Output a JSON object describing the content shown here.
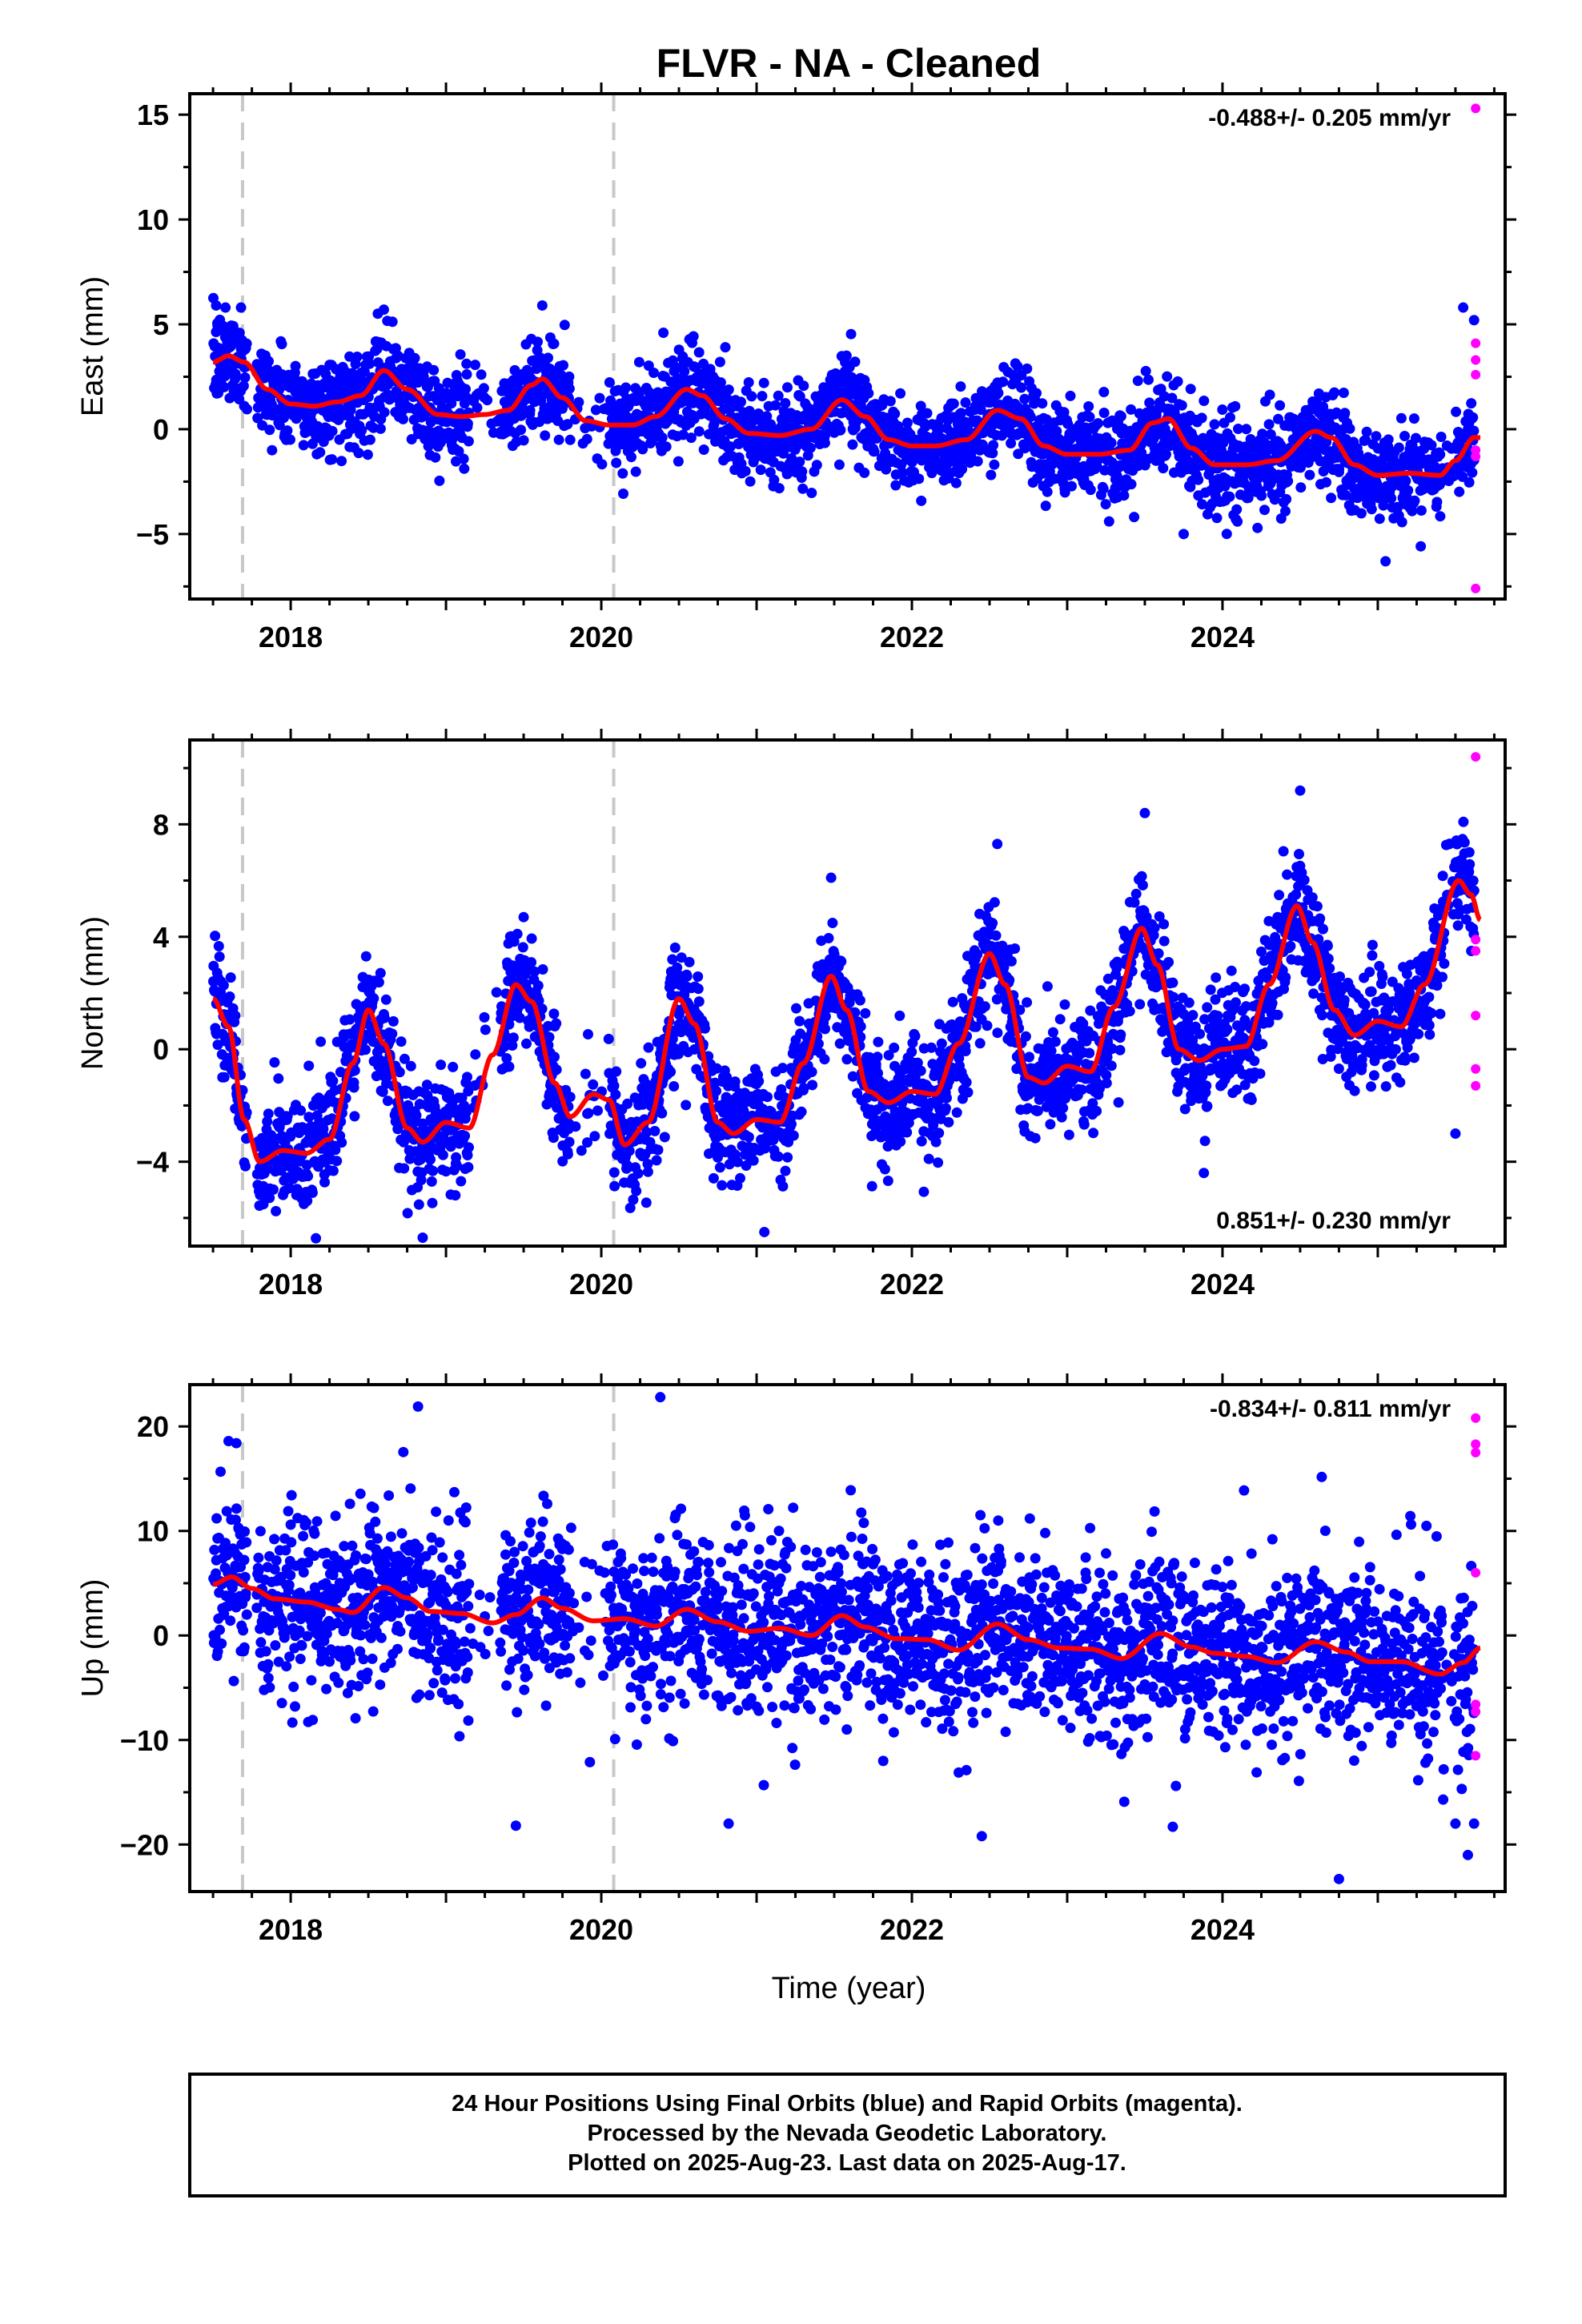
{
  "title": "FLVR  - NA - Cleaned",
  "xlabel": "Time (year)",
  "footer": {
    "line1": "24 Hour Positions Using Final Orbits (blue) and Rapid Orbits (magenta).",
    "line2": "Processed by the Nevada Geodetic Laboratory.",
    "line3": "Plotted on 2025-Aug-23. Last data on 2025-Aug-17."
  },
  "colors": {
    "final_orbits": "#0000ff",
    "rapid_orbits": "#ff00ff",
    "model_fit": "#ff0000",
    "event_lines": "#c8c8c8",
    "frame": "#000000"
  },
  "chart_data": [
    {
      "type": "scatter",
      "component": "East",
      "ylabel": "East (mm)",
      "rate_label": "-0.488+/- 0.205 mm/yr",
      "xlim": [
        2017.35,
        2025.82
      ],
      "ylim": [
        -8.1,
        16.0
      ],
      "xticks": [
        2018,
        2020,
        2022,
        2024
      ],
      "yticks": [
        -5,
        0,
        5,
        10,
        15
      ],
      "event_lines_x": [
        2017.69,
        2020.08
      ],
      "grid": false,
      "series": [
        {
          "name": "Final Orbits",
          "color": "#0000ff",
          "description": "daily positions, ~1 point per day",
          "fit_knots": [
            [
              2017.5,
              3.2
            ],
            [
              2017.6,
              3.5
            ],
            [
              2017.7,
              3.2
            ],
            [
              2017.85,
              1.9
            ],
            [
              2018.0,
              1.2
            ],
            [
              2018.15,
              1.1
            ],
            [
              2018.3,
              1.3
            ],
            [
              2018.45,
              1.6
            ],
            [
              2018.6,
              2.8
            ],
            [
              2018.75,
              1.9
            ],
            [
              2018.95,
              0.7
            ],
            [
              2019.1,
              0.6
            ],
            [
              2019.25,
              0.7
            ],
            [
              2019.4,
              0.9
            ],
            [
              2019.55,
              2.1
            ],
            [
              2019.62,
              2.4
            ],
            [
              2019.75,
              1.5
            ],
            [
              2019.9,
              0.4
            ],
            [
              2020.05,
              0.2
            ],
            [
              2020.2,
              0.2
            ],
            [
              2020.35,
              0.6
            ],
            [
              2020.55,
              1.9
            ],
            [
              2020.65,
              1.6
            ],
            [
              2020.8,
              0.5
            ],
            [
              2020.95,
              -0.2
            ],
            [
              2021.15,
              -0.3
            ],
            [
              2021.35,
              0.0
            ],
            [
              2021.55,
              1.4
            ],
            [
              2021.7,
              0.6
            ],
            [
              2021.85,
              -0.5
            ],
            [
              2022.0,
              -0.8
            ],
            [
              2022.15,
              -0.8
            ],
            [
              2022.35,
              -0.5
            ],
            [
              2022.55,
              0.9
            ],
            [
              2022.7,
              0.5
            ],
            [
              2022.85,
              -0.8
            ],
            [
              2023.0,
              -1.2
            ],
            [
              2023.2,
              -1.2
            ],
            [
              2023.4,
              -1.0
            ],
            [
              2023.55,
              0.3
            ],
            [
              2023.65,
              0.5
            ],
            [
              2023.8,
              -0.9
            ],
            [
              2023.95,
              -1.7
            ],
            [
              2024.15,
              -1.7
            ],
            [
              2024.35,
              -1.5
            ],
            [
              2024.6,
              -0.1
            ],
            [
              2024.7,
              -0.4
            ],
            [
              2024.85,
              -1.7
            ],
            [
              2025.0,
              -2.2
            ],
            [
              2025.2,
              -2.1
            ],
            [
              2025.4,
              -2.2
            ],
            [
              2025.5,
              -1.5
            ],
            [
              2025.62,
              -0.4
            ],
            [
              2025.66,
              -0.4
            ]
          ],
          "amplitude_annual": 0.9,
          "noise_sigma": 1.1,
          "outliers": [
            [
              2017.52,
              5.9
            ],
            [
              2017.58,
              5.8
            ],
            [
              2017.68,
              5.8
            ],
            [
              2018.6,
              5.7
            ],
            [
              2019.62,
              5.9
            ],
            [
              2020.4,
              4.6
            ],
            [
              2023.75,
              -5.0
            ],
            [
              2025.05,
              -6.3
            ],
            [
              2025.55,
              5.8
            ],
            [
              2025.62,
              5.2
            ]
          ]
        },
        {
          "name": "Rapid Orbits",
          "color": "#ff00ff",
          "points": [
            [
              2025.63,
              15.3
            ],
            [
              2025.63,
              4.1
            ],
            [
              2025.63,
              3.3
            ],
            [
              2025.63,
              2.6
            ],
            [
              2025.63,
              -1.0
            ],
            [
              2025.63,
              -1.3
            ],
            [
              2025.63,
              -7.6
            ]
          ]
        }
      ]
    },
    {
      "type": "scatter",
      "component": "North",
      "ylabel": "North (mm)",
      "rate_label": "0.851+/- 0.230 mm/yr",
      "xlim": [
        2017.35,
        2025.82
      ],
      "ylim": [
        -7.0,
        11.0
      ],
      "xticks": [
        2018,
        2020,
        2022,
        2024
      ],
      "yticks": [
        -4,
        0,
        4,
        8
      ],
      "event_lines_x": [
        2017.69,
        2020.08
      ],
      "grid": false,
      "series": [
        {
          "name": "Final Orbits",
          "color": "#0000ff",
          "fit_knots": [
            [
              2017.5,
              1.8
            ],
            [
              2017.6,
              0.8
            ],
            [
              2017.7,
              -2.5
            ],
            [
              2017.8,
              -4.0
            ],
            [
              2017.95,
              -3.6
            ],
            [
              2018.1,
              -3.7
            ],
            [
              2018.25,
              -3.2
            ],
            [
              2018.4,
              -0.5
            ],
            [
              2018.5,
              1.4
            ],
            [
              2018.6,
              0.2
            ],
            [
              2018.75,
              -2.8
            ],
            [
              2018.85,
              -3.3
            ],
            [
              2019.0,
              -2.6
            ],
            [
              2019.15,
              -2.8
            ],
            [
              2019.3,
              -0.2
            ],
            [
              2019.45,
              2.3
            ],
            [
              2019.55,
              1.7
            ],
            [
              2019.7,
              -1.2
            ],
            [
              2019.8,
              -2.4
            ],
            [
              2019.95,
              -1.6
            ],
            [
              2020.05,
              -1.8
            ],
            [
              2020.15,
              -3.4
            ],
            [
              2020.3,
              -2.6
            ],
            [
              2020.5,
              1.8
            ],
            [
              2020.6,
              0.9
            ],
            [
              2020.75,
              -2.6
            ],
            [
              2020.85,
              -3.0
            ],
            [
              2021.0,
              -2.5
            ],
            [
              2021.15,
              -2.6
            ],
            [
              2021.3,
              -0.5
            ],
            [
              2021.48,
              2.6
            ],
            [
              2021.58,
              1.4
            ],
            [
              2021.72,
              -1.5
            ],
            [
              2021.85,
              -1.9
            ],
            [
              2022.0,
              -1.5
            ],
            [
              2022.15,
              -1.6
            ],
            [
              2022.3,
              0.2
            ],
            [
              2022.5,
              3.4
            ],
            [
              2022.6,
              2.3
            ],
            [
              2022.75,
              -1.0
            ],
            [
              2022.85,
              -1.2
            ],
            [
              2023.0,
              -0.6
            ],
            [
              2023.15,
              -0.8
            ],
            [
              2023.3,
              1.5
            ],
            [
              2023.48,
              4.3
            ],
            [
              2023.58,
              3.0
            ],
            [
              2023.72,
              0.0
            ],
            [
              2023.85,
              -0.4
            ],
            [
              2024.0,
              0.0
            ],
            [
              2024.15,
              0.1
            ],
            [
              2024.3,
              2.3
            ],
            [
              2024.48,
              5.1
            ],
            [
              2024.58,
              3.8
            ],
            [
              2024.72,
              1.4
            ],
            [
              2024.85,
              0.5
            ],
            [
              2025.0,
              1.0
            ],
            [
              2025.15,
              0.8
            ],
            [
              2025.3,
              2.3
            ],
            [
              2025.52,
              6.0
            ],
            [
              2025.6,
              5.5
            ],
            [
              2025.66,
              4.6
            ]
          ],
          "noise_sigma": 1.0,
          "outliers": [
            [
              2018.85,
              -6.7
            ],
            [
              2021.05,
              -6.5
            ],
            [
              2023.88,
              -4.4
            ],
            [
              2019.5,
              4.7
            ],
            [
              2024.5,
              9.2
            ],
            [
              2023.5,
              8.4
            ],
            [
              2021.48,
              6.1
            ],
            [
              2022.55,
              7.3
            ],
            [
              2025.5,
              -3.0
            ]
          ]
        },
        {
          "name": "Rapid Orbits",
          "color": "#ff00ff",
          "points": [
            [
              2025.63,
              10.4
            ],
            [
              2025.63,
              3.9
            ],
            [
              2025.63,
              3.5
            ],
            [
              2025.63,
              1.2
            ],
            [
              2025.63,
              -0.7
            ],
            [
              2025.63,
              -1.3
            ]
          ]
        }
      ]
    },
    {
      "type": "scatter",
      "component": "Up",
      "ylabel": "Up (mm)",
      "rate_label": "-0.834+/- 0.811 mm/yr",
      "xlim": [
        2017.35,
        2025.82
      ],
      "ylim": [
        -24.5,
        24.0
      ],
      "xticks": [
        2018,
        2020,
        2022,
        2024
      ],
      "yticks": [
        -20,
        -10,
        0,
        10,
        20
      ],
      "event_lines_x": [
        2017.69,
        2020.08
      ],
      "grid": false,
      "series": [
        {
          "name": "Final Orbits",
          "color": "#0000ff",
          "fit_knots": [
            [
              2017.5,
              4.9
            ],
            [
              2017.62,
              5.6
            ],
            [
              2017.75,
              4.5
            ],
            [
              2017.9,
              3.5
            ],
            [
              2018.1,
              3.2
            ],
            [
              2018.3,
              2.5
            ],
            [
              2018.4,
              2.2
            ],
            [
              2018.6,
              4.6
            ],
            [
              2018.75,
              3.6
            ],
            [
              2018.9,
              2.3
            ],
            [
              2019.1,
              2.1
            ],
            [
              2019.3,
              1.2
            ],
            [
              2019.45,
              2.0
            ],
            [
              2019.62,
              3.6
            ],
            [
              2019.75,
              2.6
            ],
            [
              2019.95,
              1.4
            ],
            [
              2020.15,
              1.6
            ],
            [
              2020.35,
              0.9
            ],
            [
              2020.55,
              2.5
            ],
            [
              2020.75,
              1.3
            ],
            [
              2020.95,
              0.4
            ],
            [
              2021.15,
              0.7
            ],
            [
              2021.35,
              0.0
            ],
            [
              2021.55,
              1.9
            ],
            [
              2021.7,
              0.8
            ],
            [
              2021.9,
              -0.3
            ],
            [
              2022.1,
              -0.4
            ],
            [
              2022.3,
              -1.4
            ],
            [
              2022.55,
              1.1
            ],
            [
              2022.75,
              -0.4
            ],
            [
              2022.95,
              -1.2
            ],
            [
              2023.15,
              -1.3
            ],
            [
              2023.35,
              -2.2
            ],
            [
              2023.6,
              0.2
            ],
            [
              2023.8,
              -1.1
            ],
            [
              2023.95,
              -1.7
            ],
            [
              2024.15,
              -2.0
            ],
            [
              2024.35,
              -2.6
            ],
            [
              2024.6,
              -0.6
            ],
            [
              2024.8,
              -1.6
            ],
            [
              2024.95,
              -2.5
            ],
            [
              2025.15,
              -2.5
            ],
            [
              2025.4,
              -3.7
            ],
            [
              2025.55,
              -2.6
            ],
            [
              2025.66,
              -1.2
            ]
          ],
          "noise_sigma": 4.2,
          "outliers": [
            [
              2017.6,
              18.6
            ],
            [
              2017.65,
              18.4
            ],
            [
              2018.82,
              21.9
            ],
            [
              2020.38,
              22.8
            ],
            [
              2019.45,
              -18.2
            ],
            [
              2020.82,
              -18.0
            ],
            [
              2022.45,
              -19.2
            ],
            [
              2023.68,
              -18.3
            ],
            [
              2024.75,
              -23.3
            ],
            [
              2025.5,
              -18.0
            ],
            [
              2025.58,
              -21.0
            ],
            [
              2025.62,
              -18.0
            ]
          ]
        },
        {
          "name": "Rapid Orbits",
          "color": "#ff00ff",
          "points": [
            [
              2025.63,
              20.8
            ],
            [
              2025.63,
              18.3
            ],
            [
              2025.63,
              17.5
            ],
            [
              2025.63,
              6.0
            ],
            [
              2025.63,
              -6.6
            ],
            [
              2025.63,
              -7.3
            ],
            [
              2025.63,
              -11.5
            ]
          ]
        }
      ]
    }
  ]
}
